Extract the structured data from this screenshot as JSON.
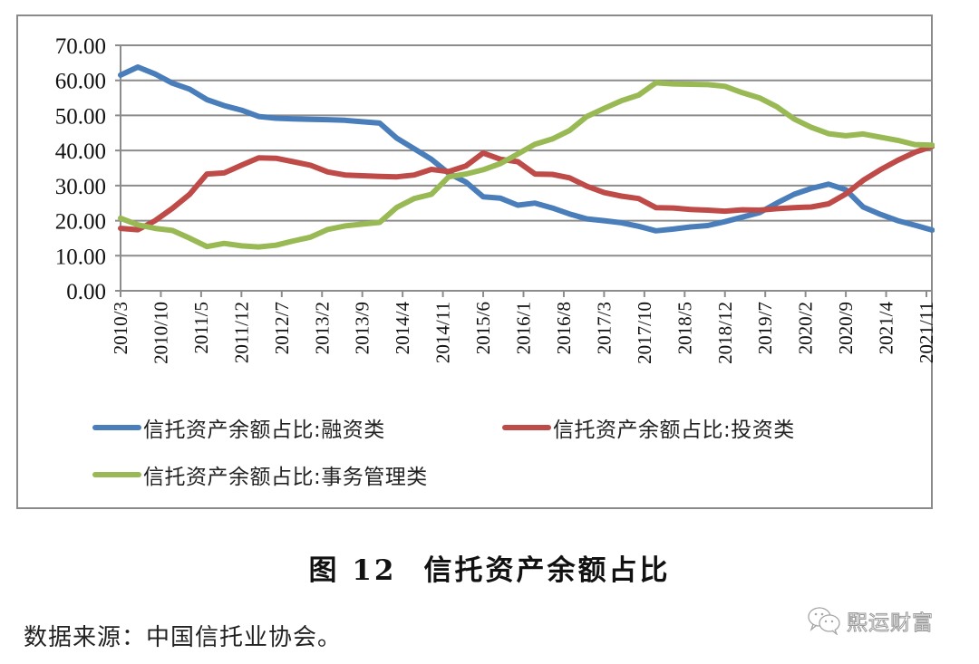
{
  "figure": {
    "number_label": "图 12",
    "title": "信托资产余额占比",
    "source": "数据来源：中国信托业协会。",
    "watermark": "熙运财富",
    "watermark_icon": "wechat-icon"
  },
  "chart_data": {
    "type": "line",
    "title": "信托资产余额占比",
    "xlabel": "",
    "ylabel": "",
    "ylim": [
      0,
      70
    ],
    "grid": true,
    "legend_position": "bottom",
    "y_ticks": [
      "0.00",
      "10.00",
      "20.00",
      "30.00",
      "40.00",
      "50.00",
      "60.00",
      "70.00"
    ],
    "x_tick_labels": [
      "2010/3",
      "2010/10",
      "2011/5",
      "2011/12",
      "2012/7",
      "2013/2",
      "2013/9",
      "2014/4",
      "2014/11",
      "2015/6",
      "2016/1",
      "2016/8",
      "2017/3",
      "2017/10",
      "2018/5",
      "2018/12",
      "2019/7",
      "2020/2",
      "2020/9",
      "2021/4",
      "2021/11"
    ],
    "x": [
      "2010Q1",
      "2010Q2",
      "2010Q3",
      "2010Q4",
      "2011Q1",
      "2011Q2",
      "2011Q3",
      "2011Q4",
      "2012Q1",
      "2012Q2",
      "2012Q3",
      "2012Q4",
      "2013Q1",
      "2013Q2",
      "2013Q3",
      "2013Q4",
      "2014Q1",
      "2014Q2",
      "2014Q3",
      "2014Q4",
      "2015Q1",
      "2015Q2",
      "2015Q3",
      "2015Q4",
      "2016Q1",
      "2016Q2",
      "2016Q3",
      "2016Q4",
      "2017Q1",
      "2017Q2",
      "2017Q3",
      "2017Q4",
      "2018Q1",
      "2018Q2",
      "2018Q3",
      "2018Q4",
      "2019Q1",
      "2019Q2",
      "2019Q3",
      "2019Q4",
      "2020Q1",
      "2020Q2",
      "2020Q3",
      "2020Q4",
      "2021Q1",
      "2021Q2",
      "2021Q3",
      "2021Q4"
    ],
    "series": [
      {
        "name": "信托资产余额占比:融资类",
        "color": "#4a7ebb",
        "values": [
          61.5,
          63.8,
          61.8,
          59.2,
          57.5,
          54.5,
          52.8,
          51.5,
          49.7,
          49.2,
          49.0,
          48.9,
          48.8,
          48.6,
          48.2,
          47.8,
          43.5,
          40.5,
          37.5,
          33.5,
          31.0,
          26.8,
          26.4,
          24.4,
          25.0,
          23.6,
          21.9,
          20.5,
          20.0,
          19.4,
          18.4,
          17.1,
          17.6,
          18.2,
          18.6,
          19.7,
          21.0,
          22.3,
          25.0,
          27.5,
          29.2,
          30.4,
          28.8,
          23.9,
          21.8,
          20.0,
          18.7,
          17.3
        ]
      },
      {
        "name": "信托资产余额占比:投资类",
        "color": "#be4b48",
        "values": [
          17.8,
          17.4,
          20.0,
          23.5,
          27.5,
          33.3,
          33.6,
          35.8,
          37.9,
          37.8,
          36.8,
          35.8,
          33.9,
          33.0,
          32.8,
          32.6,
          32.5,
          33.0,
          34.6,
          34.0,
          35.6,
          39.3,
          37.5,
          36.8,
          33.3,
          33.2,
          32.2,
          29.8,
          28.0,
          27.0,
          26.3,
          23.7,
          23.6,
          23.2,
          23.0,
          22.7,
          23.1,
          23.0,
          23.4,
          23.7,
          23.9,
          24.8,
          27.6,
          31.5,
          34.5,
          37.2,
          39.5,
          41.2
        ]
      },
      {
        "name": "信托资产余额占比:事务管理类",
        "color": "#98b954",
        "values": [
          20.7,
          18.8,
          17.8,
          17.2,
          15.0,
          12.6,
          13.5,
          12.8,
          12.5,
          13.0,
          14.2,
          15.3,
          17.5,
          18.5,
          19.0,
          19.5,
          23.8,
          26.3,
          27.5,
          32.5,
          33.3,
          34.5,
          36.3,
          39.0,
          41.8,
          43.3,
          45.7,
          49.7,
          52.0,
          54.2,
          55.8,
          59.3,
          59.0,
          58.9,
          58.8,
          58.3,
          56.5,
          55.0,
          52.5,
          49.0,
          46.6,
          44.8,
          44.2,
          44.7,
          43.8,
          42.9,
          41.7,
          41.5
        ]
      }
    ]
  },
  "legend": {
    "items": [
      {
        "label": "信托资产余额占比:融资类",
        "color": "#4a7ebb"
      },
      {
        "label": "信托资产余额占比:投资类",
        "color": "#be4b48"
      },
      {
        "label": "信托资产余额占比:事务管理类",
        "color": "#98b954"
      }
    ]
  }
}
